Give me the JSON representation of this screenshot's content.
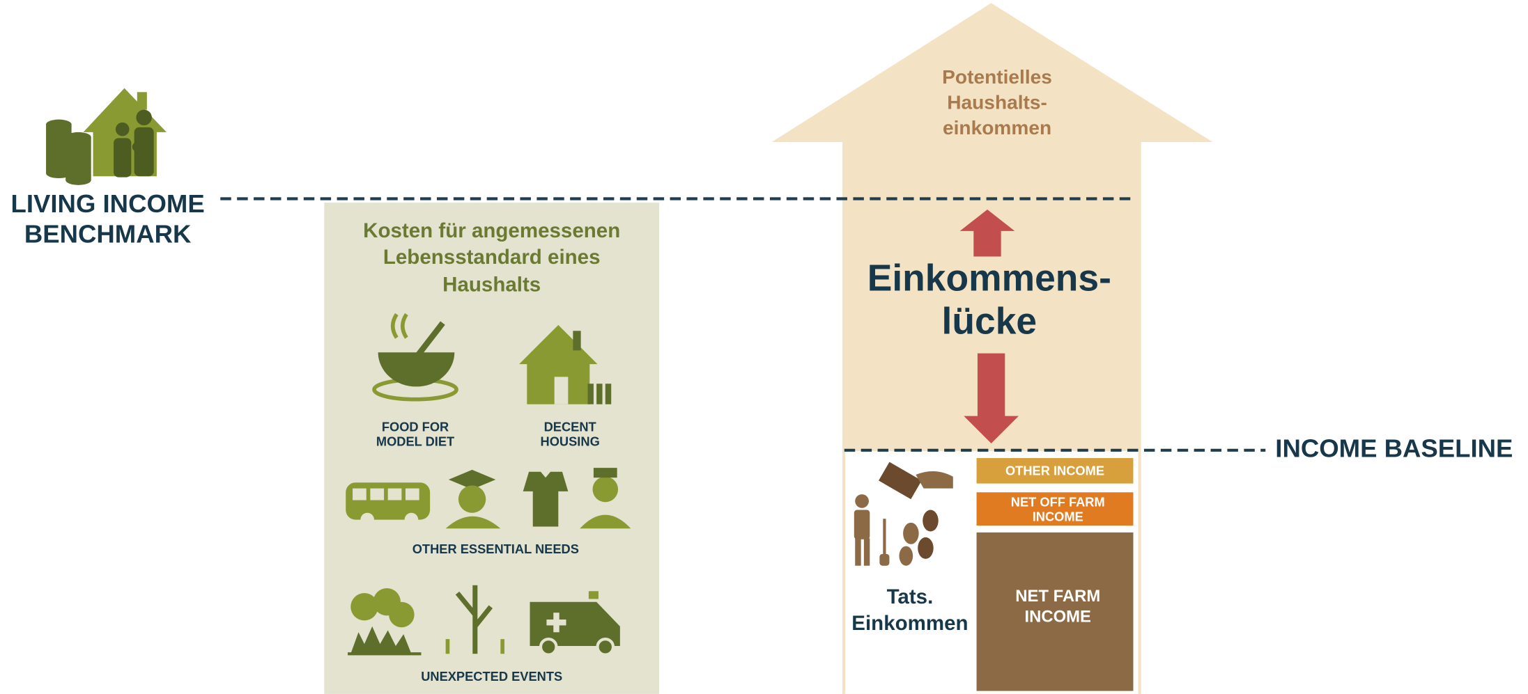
{
  "benchmark": {
    "label_lines": [
      "LIVING INCOME",
      "BENCHMARK"
    ]
  },
  "costs": {
    "title_lines": [
      "Kosten für angemessenen",
      "Lebensstandard eines",
      "Haushalts"
    ],
    "food": [
      "FOOD FOR",
      "MODEL DIET"
    ],
    "housing": [
      "DECENT",
      "HOUSING"
    ],
    "other_needs": "OTHER ESSENTIAL NEEDS",
    "unexpected": "UNEXPECTED EVENTS"
  },
  "potential_lines": [
    "Potentielles",
    "Haushalts-",
    "einkommen"
  ],
  "gap_lines": [
    "Einkommens-",
    "lücke"
  ],
  "baseline": "INCOME BASELINE",
  "actual_lines": [
    "Tats.",
    "Einkommen"
  ],
  "income_components": {
    "other": [
      "OTHER INCOME"
    ],
    "off_farm": [
      "NET OFF FARM",
      "INCOME"
    ],
    "farm": [
      "NET FARM",
      "INCOME"
    ]
  }
}
